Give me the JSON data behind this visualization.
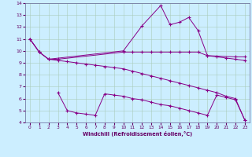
{
  "bg_color": "#cceeff",
  "grid_color": "#aaccbb",
  "line_color": "#880088",
  "xlim": [
    -0.5,
    23.5
  ],
  "ylim": [
    4,
    14
  ],
  "xticks": [
    0,
    1,
    2,
    3,
    4,
    5,
    6,
    7,
    8,
    9,
    10,
    11,
    12,
    13,
    14,
    15,
    16,
    17,
    18,
    19,
    20,
    21,
    22,
    23
  ],
  "yticks": [
    4,
    5,
    6,
    7,
    8,
    9,
    10,
    11,
    12,
    13,
    14
  ],
  "xlabel": "Windchill (Refroidissement éolien,°C)",
  "line1_x": [
    0,
    1,
    2,
    10,
    12,
    14,
    15,
    16,
    17,
    18,
    19,
    22,
    23
  ],
  "line1_y": [
    11.0,
    9.9,
    9.3,
    10.0,
    12.1,
    13.8,
    12.2,
    12.4,
    12.8,
    11.7,
    9.6,
    9.5,
    9.5
  ],
  "line2_x": [
    0,
    1,
    2,
    3,
    10,
    11,
    12,
    13,
    14,
    15,
    16,
    17,
    18,
    19,
    20,
    21,
    22,
    23
  ],
  "line2_y": [
    11.0,
    9.9,
    9.3,
    9.3,
    9.9,
    9.9,
    9.9,
    9.9,
    9.9,
    9.9,
    9.9,
    9.9,
    9.9,
    9.6,
    9.5,
    9.4,
    9.3,
    9.2
  ],
  "line3_x": [
    0,
    1,
    2,
    3,
    4,
    5,
    6,
    7,
    8,
    9,
    10,
    11,
    12,
    13,
    14,
    15,
    16,
    17,
    18,
    19,
    20,
    21,
    22,
    23
  ],
  "line3_y": [
    11.0,
    9.9,
    9.3,
    9.2,
    9.1,
    9.0,
    8.9,
    8.8,
    8.7,
    8.6,
    8.5,
    8.3,
    8.1,
    7.9,
    7.7,
    7.5,
    7.3,
    7.1,
    6.9,
    6.7,
    6.5,
    6.2,
    6.0,
    4.2
  ],
  "line4_x": [
    3,
    4,
    5,
    6,
    7,
    8,
    9,
    10,
    11,
    12,
    13,
    14,
    15,
    16,
    17,
    18,
    19,
    20,
    21,
    22,
    23
  ],
  "line4_y": [
    6.5,
    5.0,
    4.8,
    4.7,
    4.6,
    6.4,
    6.3,
    6.2,
    6.0,
    5.9,
    5.7,
    5.5,
    5.4,
    5.2,
    5.0,
    4.8,
    4.6,
    6.3,
    6.1,
    5.9,
    4.2
  ]
}
